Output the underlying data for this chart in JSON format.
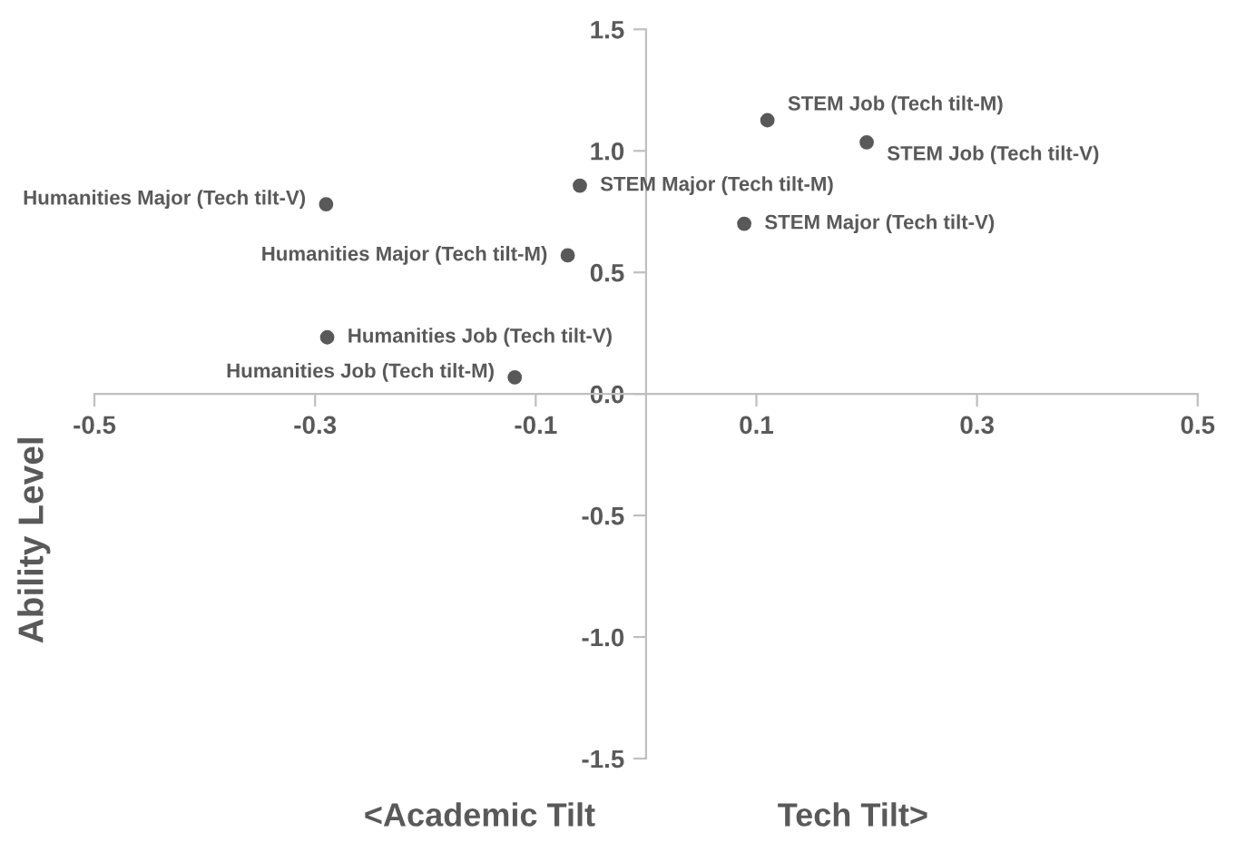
{
  "chart_data": {
    "type": "scatter",
    "xlabel": "<Academic Tilt                    Tech Tilt>",
    "ylabel": "Ability Level",
    "x": [
      0.11,
      0.2,
      -0.06,
      -0.29,
      0.089,
      -0.071,
      -0.289,
      -0.119
    ],
    "series": [
      {
        "color": "#595959",
        "values": [
          1.126,
          1.035,
          0.857,
          0.78,
          0.7,
          0.57,
          0.233,
          0.068
        ]
      }
    ],
    "annotations": [
      {
        "text": "STEM Job (Tech tilt-M)",
        "x": 0.11,
        "y": 1.126
      },
      {
        "text": "STEM Job (Tech tilt-V)",
        "x": 0.2,
        "y": 1.035
      },
      {
        "text": "STEM Major (Tech tilt-M)",
        "x": -0.06,
        "y": 0.857
      },
      {
        "text": "Humanities Major (Tech tilt-V)",
        "x": -0.29,
        "y": 0.78
      },
      {
        "text": "STEM Major (Tech tilt-V)",
        "x": 0.089,
        "y": 0.7
      },
      {
        "text": "Humanities Major (Tech tilt-M)",
        "x": -0.071,
        "y": 0.57
      },
      {
        "text": "Humanities Job (Tech tilt-V)",
        "x": -0.289,
        "y": 0.233
      },
      {
        "text": "Humanities Job (Tech tilt-M)",
        "x": -0.119,
        "y": 0.068
      }
    ],
    "xlim": [
      -0.5,
      0.5
    ],
    "ylim": [
      -1.5,
      1.5
    ],
    "xticks": [
      -0.5,
      -0.3,
      -0.1,
      0.1,
      0.3,
      0.5
    ],
    "yticks": [
      -1.5,
      {
        "value": -1,
        "label": "-1.0"
      },
      -0.5,
      {
        "value": 0,
        "label": "0.0"
      },
      0.5,
      {
        "value": 1,
        "label": "1.0"
      },
      1.5
    ],
    "marker": "circle",
    "grid": false,
    "legend": false
  }
}
